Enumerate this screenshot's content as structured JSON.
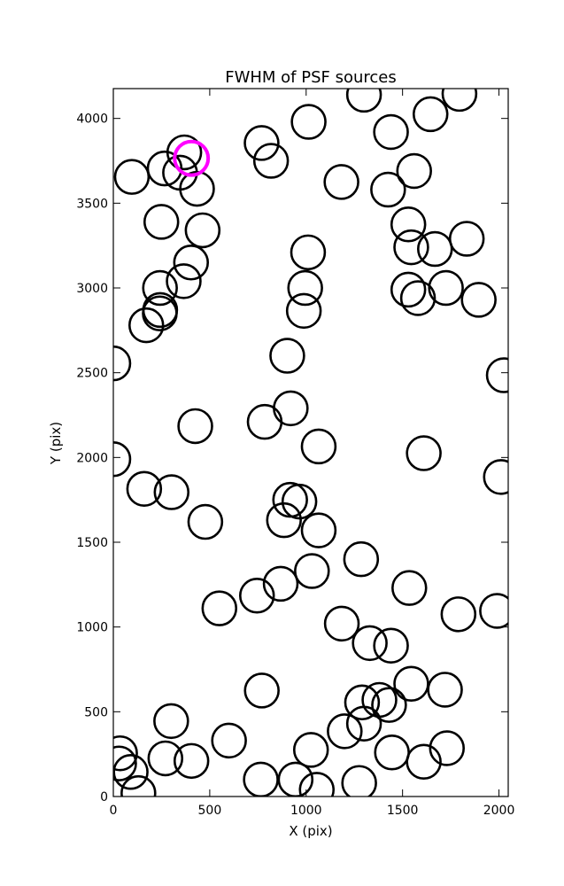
{
  "chart_data": {
    "type": "scatter",
    "title": "FWHM of PSF sources",
    "xlabel": "X (pix)",
    "ylabel": "Y (pix)",
    "xlim": [
      0,
      2048
    ],
    "ylim": [
      0,
      4176
    ],
    "xticks": [
      0,
      500,
      1000,
      1500,
      2000
    ],
    "yticks": [
      0,
      500,
      1000,
      1500,
      2000,
      2500,
      3000,
      3500,
      4000
    ],
    "grid": false,
    "marker_radius_data_x": 87,
    "series": [
      {
        "color": "#000000",
        "points": [
          [
            96,
            3655
          ],
          [
            266,
            3705
          ],
          [
            346,
            3680
          ],
          [
            434,
            3585
          ],
          [
            368,
            3800
          ],
          [
            249,
            3390
          ],
          [
            463,
            3340
          ],
          [
            403,
            3150
          ],
          [
            365,
            3040
          ],
          [
            242,
            3000
          ],
          [
            243,
            2870
          ],
          [
            241,
            2850
          ],
          [
            171,
            2780
          ],
          [
            769,
            3855
          ],
          [
            818,
            3750
          ],
          [
            1013,
            3980
          ],
          [
            1183,
            3625
          ],
          [
            1300,
            4140
          ],
          [
            1440,
            3920
          ],
          [
            1645,
            4025
          ],
          [
            1795,
            4145
          ],
          [
            1425,
            3580
          ],
          [
            1560,
            3690
          ],
          [
            1530,
            3375
          ],
          [
            1545,
            3240
          ],
          [
            1668,
            3230
          ],
          [
            1833,
            3290
          ],
          [
            1530,
            2990
          ],
          [
            1580,
            2940
          ],
          [
            1725,
            3000
          ],
          [
            1895,
            2930
          ],
          [
            1010,
            3210
          ],
          [
            995,
            3000
          ],
          [
            988,
            2865
          ],
          [
            902,
            2600
          ],
          [
            0,
            2555
          ],
          [
            2025,
            2485
          ],
          [
            920,
            2290
          ],
          [
            785,
            2210
          ],
          [
            425,
            2185
          ],
          [
            1065,
            2065
          ],
          [
            1610,
            2025
          ],
          [
            0,
            1990
          ],
          [
            2010,
            1885
          ],
          [
            160,
            1815
          ],
          [
            302,
            1795
          ],
          [
            477,
            1620
          ],
          [
            917,
            1750
          ],
          [
            965,
            1740
          ],
          [
            885,
            1630
          ],
          [
            1065,
            1570
          ],
          [
            1285,
            1400
          ],
          [
            1030,
            1330
          ],
          [
            868,
            1255
          ],
          [
            745,
            1185
          ],
          [
            550,
            1110
          ],
          [
            1535,
            1230
          ],
          [
            1790,
            1075
          ],
          [
            1990,
            1095
          ],
          [
            1185,
            1020
          ],
          [
            1330,
            905
          ],
          [
            1440,
            890
          ],
          [
            770,
            625
          ],
          [
            300,
            445
          ],
          [
            1290,
            555
          ],
          [
            1380,
            570
          ],
          [
            1430,
            540
          ],
          [
            1545,
            665
          ],
          [
            1720,
            630
          ],
          [
            1200,
            385
          ],
          [
            1300,
            430
          ],
          [
            1445,
            260
          ],
          [
            1610,
            205
          ],
          [
            1730,
            285
          ],
          [
            600,
            330
          ],
          [
            405,
            210
          ],
          [
            270,
            225
          ],
          [
            35,
            255
          ],
          [
            30,
            195
          ],
          [
            90,
            145
          ],
          [
            130,
            20
          ],
          [
            765,
            100
          ],
          [
            945,
            100
          ],
          [
            1025,
            275
          ],
          [
            1055,
            40
          ],
          [
            1275,
            80
          ]
        ]
      },
      {
        "color": "#ff00ff",
        "points": [
          [
            405,
            3765
          ]
        ]
      }
    ]
  }
}
